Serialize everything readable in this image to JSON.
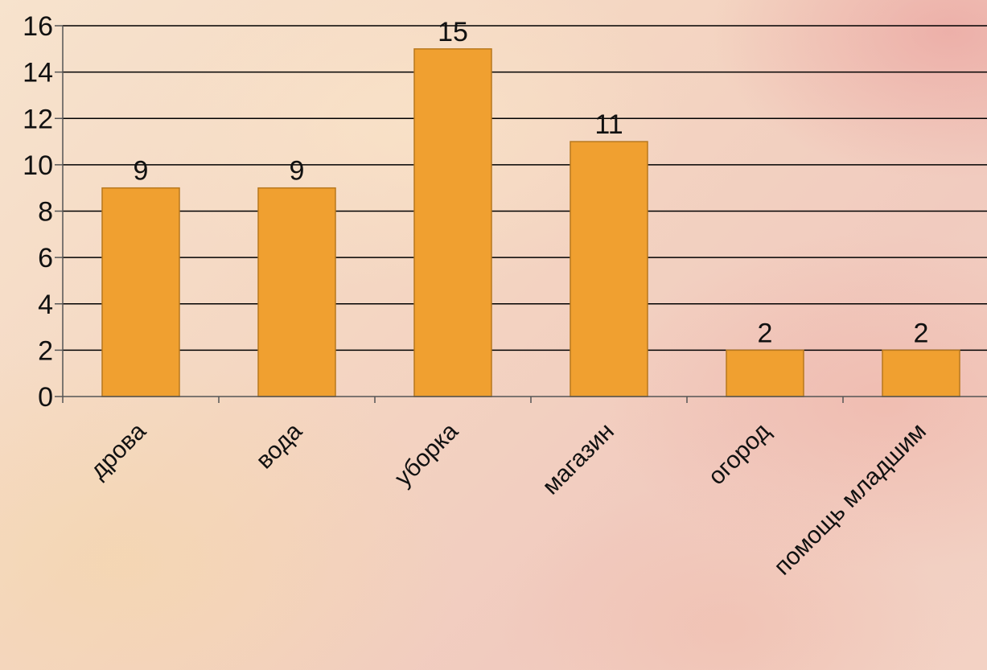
{
  "chart_data": {
    "type": "bar",
    "categories": [
      "дрова",
      "вода",
      "уборка",
      "магазин",
      "огород",
      "помощь младшим"
    ],
    "values": [
      9,
      9,
      15,
      11,
      2,
      2
    ],
    "ylim": [
      0,
      16
    ],
    "yticks": [
      0,
      2,
      4,
      6,
      8,
      10,
      12,
      14,
      16
    ],
    "grid": true,
    "data_labels": true,
    "bar_color": "#F0A030",
    "bar_edge_color": "#B8781E",
    "grid_color": "#000000"
  }
}
